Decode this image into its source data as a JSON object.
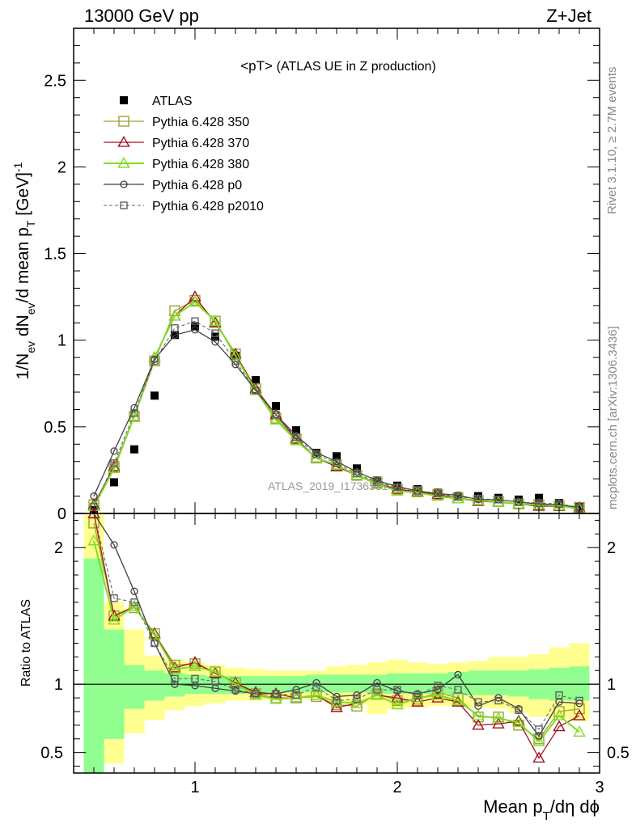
{
  "header": {
    "left": "13000 GeV pp",
    "right": "Z+Jet"
  },
  "plot_title": "<pT>",
  "plot_subtitle": "(ATLAS UE in Z production)",
  "side_text_top": "Rivet 3.1.10, ≥ 2.7M events",
  "side_text_bottom": "mcplots.cern.ch [arXiv:1306.3436]",
  "watermark": "ATLAS_2019_I1736531",
  "colors": {
    "atlas": "#000000",
    "p350": "#a0a030",
    "p370": "#a01020",
    "p380": "#80dd20",
    "p0": "#404040",
    "p2010": "#606060",
    "band_inner": "#90ff90",
    "band_outer": "#ffff90"
  },
  "chart_data": {
    "type": "line",
    "title": "<pT> (ATLAS UE in Z production)",
    "xlabel": "Mean p_T/dη dϕ",
    "ylabel": "1/N_ev dN_ev/d mean p_T [GeV]^-1",
    "ratio_ylabel": "Ratio to ATLAS",
    "xlim": [
      0.4,
      3.0
    ],
    "ylim": [
      0,
      2.8
    ],
    "ratio_ylim": [
      0.35,
      2.25
    ],
    "x_ticks": [
      "1",
      "2",
      "3"
    ],
    "y_ticks": [
      "0",
      "0.5",
      "1",
      "1.5",
      "2",
      "2.5"
    ],
    "ratio_y_ticks": [
      "0.5",
      "1",
      "2"
    ],
    "legend_position": "top-left",
    "x": [
      0.5,
      0.6,
      0.7,
      0.8,
      0.9,
      1.0,
      1.1,
      1.2,
      1.3,
      1.4,
      1.5,
      1.6,
      1.7,
      1.8,
      1.9,
      2.0,
      2.1,
      2.2,
      2.3,
      2.4,
      2.5,
      2.6,
      2.7,
      2.8,
      2.9
    ],
    "series": [
      {
        "name": "ATLAS",
        "values": [
          0.02,
          0.18,
          0.37,
          0.68,
          1.03,
          1.08,
          1.02,
          0.91,
          0.77,
          0.62,
          0.48,
          0.35,
          0.33,
          0.26,
          0.19,
          0.16,
          0.14,
          0.12,
          0.1,
          0.1,
          0.09,
          0.08,
          0.09,
          0.06,
          0.04
        ]
      },
      {
        "name": "Pythia 6.428 350",
        "values": [
          0.05,
          0.27,
          0.56,
          0.88,
          1.17,
          1.23,
          1.11,
          0.92,
          0.72,
          0.55,
          0.43,
          0.32,
          0.28,
          0.22,
          0.18,
          0.14,
          0.125,
          0.11,
          0.09,
          0.075,
          0.07,
          0.055,
          0.05,
          0.045,
          0.035
        ]
      },
      {
        "name": "Pythia 6.428 370",
        "values": [
          0.05,
          0.27,
          0.56,
          0.9,
          1.14,
          1.25,
          1.1,
          0.92,
          0.72,
          0.57,
          0.43,
          0.32,
          0.27,
          0.22,
          0.17,
          0.14,
          0.125,
          0.11,
          0.085,
          0.07,
          0.065,
          0.055,
          0.042,
          0.042,
          0.033
        ]
      },
      {
        "name": "Pythia 6.428 380",
        "values": [
          0.04,
          0.26,
          0.56,
          0.9,
          1.14,
          1.22,
          1.11,
          0.91,
          0.71,
          0.54,
          0.42,
          0.32,
          0.28,
          0.22,
          0.17,
          0.13,
          0.12,
          0.1,
          0.085,
          0.075,
          0.065,
          0.055,
          0.05,
          0.045,
          0.026
        ]
      },
      {
        "name": "Pythia 6.428 p0",
        "values": [
          0.1,
          0.36,
          0.61,
          0.89,
          1.03,
          1.06,
          0.99,
          0.86,
          0.71,
          0.57,
          0.45,
          0.35,
          0.3,
          0.24,
          0.19,
          0.155,
          0.13,
          0.115,
          0.105,
          0.08,
          0.08,
          0.066,
          0.055,
          0.05,
          0.035
        ]
      },
      {
        "name": "Pythia 6.428 p2010",
        "values": [
          0.04,
          0.29,
          0.58,
          0.88,
          1.07,
          1.11,
          1.04,
          0.88,
          0.71,
          0.57,
          0.44,
          0.34,
          0.29,
          0.23,
          0.18,
          0.15,
          0.13,
          0.115,
          0.095,
          0.085,
          0.08,
          0.065,
          0.06,
          0.055,
          0.035
        ]
      }
    ],
    "ratio_series": [
      {
        "name": "Pythia 6.428 350",
        "values": [
          2.18,
          1.5,
          1.56,
          1.37,
          1.14,
          1.15,
          1.09,
          1.01,
          0.93,
          0.9,
          0.9,
          0.91,
          0.85,
          0.84,
          0.93,
          0.88,
          0.89,
          0.94,
          0.9,
          0.76,
          0.76,
          0.7,
          0.6,
          0.8,
          0.82
        ]
      },
      {
        "name": "Pythia 6.428 370",
        "values": [
          2.25,
          1.5,
          1.57,
          1.37,
          1.12,
          1.16,
          1.08,
          1.01,
          0.94,
          0.93,
          0.9,
          0.92,
          0.83,
          0.86,
          0.92,
          0.9,
          0.87,
          0.9,
          0.87,
          0.7,
          0.71,
          0.73,
          0.46,
          0.69,
          0.77
        ]
      },
      {
        "name": "Pythia 6.428 380",
        "values": [
          2.05,
          1.47,
          1.57,
          1.36,
          1.11,
          1.13,
          1.09,
          1.0,
          0.92,
          0.89,
          0.9,
          0.92,
          0.87,
          0.86,
          0.92,
          0.85,
          0.9,
          0.92,
          0.88,
          0.77,
          0.75,
          0.72,
          0.58,
          0.77,
          0.65
        ]
      },
      {
        "name": "Pythia 6.428 p0",
        "values": [
          2.3,
          2.02,
          1.68,
          1.3,
          1.0,
          0.99,
          0.97,
          0.95,
          0.93,
          0.93,
          0.96,
          1.01,
          0.91,
          0.92,
          1.01,
          0.95,
          0.93,
          0.96,
          1.07,
          0.84,
          0.9,
          0.82,
          0.62,
          0.87,
          0.86
        ]
      },
      {
        "name": "Pythia 6.428 p2010",
        "values": [
          2.3,
          1.63,
          1.6,
          1.3,
          1.04,
          1.04,
          1.02,
          0.96,
          0.93,
          0.93,
          0.92,
          0.98,
          0.88,
          0.89,
          0.96,
          0.96,
          0.92,
          0.99,
          0.96,
          0.87,
          0.88,
          0.81,
          0.67,
          0.92,
          0.88
        ]
      }
    ],
    "ratio_band_inner": [
      [
        0.35,
        1.92
      ],
      [
        0.6,
        1.4
      ],
      [
        0.82,
        1.14
      ],
      [
        0.88,
        1.1
      ],
      [
        0.91,
        1.08
      ],
      [
        0.93,
        1.07
      ],
      [
        0.93,
        1.06
      ],
      [
        0.93,
        1.06
      ],
      [
        0.94,
        1.06
      ],
      [
        0.94,
        1.06
      ],
      [
        0.94,
        1.06
      ],
      [
        0.94,
        1.07
      ],
      [
        0.94,
        1.07
      ],
      [
        0.94,
        1.07
      ],
      [
        0.93,
        1.07
      ],
      [
        0.93,
        1.08
      ],
      [
        0.93,
        1.08
      ],
      [
        0.93,
        1.08
      ],
      [
        0.92,
        1.09
      ],
      [
        0.92,
        1.1
      ],
      [
        0.92,
        1.1
      ],
      [
        0.91,
        1.1
      ],
      [
        0.89,
        1.11
      ],
      [
        0.88,
        1.12
      ],
      [
        0.88,
        1.13
      ]
    ],
    "ratio_band_outer": [
      [
        0.35,
        2.25
      ],
      [
        0.42,
        1.6
      ],
      [
        0.64,
        1.4
      ],
      [
        0.74,
        1.21
      ],
      [
        0.81,
        1.18
      ],
      [
        0.84,
        1.16
      ],
      [
        0.86,
        1.14
      ],
      [
        0.88,
        1.12
      ],
      [
        0.88,
        1.11
      ],
      [
        0.89,
        1.1
      ],
      [
        0.89,
        1.1
      ],
      [
        0.89,
        1.1
      ],
      [
        0.86,
        1.13
      ],
      [
        0.85,
        1.14
      ],
      [
        0.78,
        1.16
      ],
      [
        0.82,
        1.18
      ],
      [
        0.83,
        1.16
      ],
      [
        0.84,
        1.15
      ],
      [
        0.84,
        1.16
      ],
      [
        0.83,
        1.17
      ],
      [
        0.82,
        1.2
      ],
      [
        0.79,
        1.2
      ],
      [
        0.76,
        1.22
      ],
      [
        0.75,
        1.27
      ],
      [
        0.73,
        1.3
      ]
    ]
  }
}
